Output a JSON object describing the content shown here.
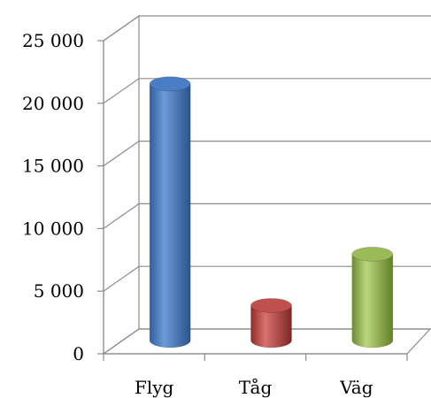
{
  "chart_data": {
    "type": "bar",
    "style": "3d-cylinder",
    "categories": [
      "Flyg",
      "Tåg",
      "Väg"
    ],
    "values": [
      21200,
      3500,
      7600
    ],
    "colors": [
      "#4a7ec4",
      "#c0504d",
      "#9bbb59"
    ],
    "ylim": [
      0,
      25000
    ],
    "yticks": [
      0,
      5000,
      10000,
      15000,
      20000,
      25000
    ],
    "ytick_labels": [
      "0",
      "5 000",
      "10 000",
      "15 000",
      "20 000",
      "25 000"
    ],
    "grid": true,
    "legend": "none"
  }
}
